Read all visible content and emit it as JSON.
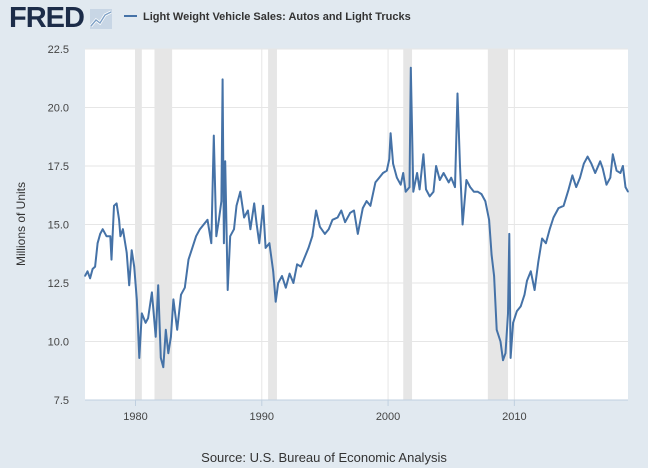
{
  "header": {
    "logo_text": "FRED",
    "legend_label": "Light Weight Vehicle Sales: Autos and Light Trucks"
  },
  "source": "Source: U.S. Bureau of Economic Analysis",
  "colors": {
    "line": "#4572a7",
    "recession": "#e6e6e6",
    "plot_bg": "#ffffff",
    "page_bg": "#e1e9f0"
  },
  "chart_data": {
    "type": "line",
    "title": "Light Weight Vehicle Sales: Autos and Light Trucks",
    "xlabel": "",
    "ylabel": "Millions of Units",
    "xlim": [
      1976,
      2019
    ],
    "ylim": [
      7.5,
      22.5
    ],
    "yticks": [
      "7.5",
      "10.0",
      "12.5",
      "15.0",
      "17.5",
      "20.0",
      "22.5"
    ],
    "xticks": [
      "1980",
      "1990",
      "2000",
      "2010"
    ],
    "grid": true,
    "recessions": [
      [
        1980.0,
        1980.5
      ],
      [
        1981.5,
        1982.9
      ],
      [
        1990.5,
        1991.2
      ],
      [
        2001.2,
        2001.9
      ],
      [
        2007.9,
        2009.5
      ]
    ],
    "series": [
      {
        "name": "Light Weight Vehicle Sales: Autos and Light Trucks",
        "points": [
          [
            1976.0,
            12.8
          ],
          [
            1976.2,
            13.0
          ],
          [
            1976.4,
            12.7
          ],
          [
            1976.6,
            13.1
          ],
          [
            1976.8,
            13.2
          ],
          [
            1977.0,
            14.2
          ],
          [
            1977.2,
            14.6
          ],
          [
            1977.4,
            14.8
          ],
          [
            1977.7,
            14.5
          ],
          [
            1978.0,
            14.5
          ],
          [
            1978.1,
            13.5
          ],
          [
            1978.3,
            15.8
          ],
          [
            1978.5,
            15.9
          ],
          [
            1978.7,
            15.2
          ],
          [
            1978.8,
            14.5
          ],
          [
            1979.0,
            14.8
          ],
          [
            1979.3,
            13.8
          ],
          [
            1979.5,
            12.4
          ],
          [
            1979.7,
            13.9
          ],
          [
            1979.9,
            13.2
          ],
          [
            1980.1,
            11.8
          ],
          [
            1980.3,
            9.3
          ],
          [
            1980.5,
            11.2
          ],
          [
            1980.8,
            10.8
          ],
          [
            1981.0,
            11.0
          ],
          [
            1981.3,
            12.1
          ],
          [
            1981.6,
            10.2
          ],
          [
            1981.8,
            12.4
          ],
          [
            1982.0,
            9.3
          ],
          [
            1982.2,
            8.9
          ],
          [
            1982.4,
            10.5
          ],
          [
            1982.6,
            9.5
          ],
          [
            1982.8,
            10.2
          ],
          [
            1983.0,
            11.8
          ],
          [
            1983.3,
            10.5
          ],
          [
            1983.6,
            12.0
          ],
          [
            1983.9,
            12.3
          ],
          [
            1984.2,
            13.5
          ],
          [
            1984.5,
            14.0
          ],
          [
            1984.8,
            14.5
          ],
          [
            1985.1,
            14.8
          ],
          [
            1985.4,
            15.0
          ],
          [
            1985.7,
            15.2
          ],
          [
            1986.0,
            14.2
          ],
          [
            1986.2,
            18.8
          ],
          [
            1986.4,
            14.5
          ],
          [
            1986.6,
            15.2
          ],
          [
            1986.8,
            16.0
          ],
          [
            1986.9,
            21.2
          ],
          [
            1987.0,
            14.2
          ],
          [
            1987.1,
            17.7
          ],
          [
            1987.3,
            12.2
          ],
          [
            1987.5,
            14.5
          ],
          [
            1987.8,
            14.8
          ],
          [
            1988.0,
            15.8
          ],
          [
            1988.3,
            16.4
          ],
          [
            1988.6,
            15.3
          ],
          [
            1988.9,
            15.6
          ],
          [
            1989.1,
            14.8
          ],
          [
            1989.4,
            15.9
          ],
          [
            1989.6,
            15.0
          ],
          [
            1989.8,
            14.2
          ],
          [
            1990.1,
            15.8
          ],
          [
            1990.3,
            14.0
          ],
          [
            1990.6,
            14.2
          ],
          [
            1990.9,
            13.0
          ],
          [
            1991.1,
            11.7
          ],
          [
            1991.3,
            12.5
          ],
          [
            1991.6,
            12.8
          ],
          [
            1991.9,
            12.3
          ],
          [
            1992.2,
            12.9
          ],
          [
            1992.5,
            12.5
          ],
          [
            1992.8,
            13.3
          ],
          [
            1993.1,
            13.2
          ],
          [
            1993.4,
            13.6
          ],
          [
            1993.7,
            14.0
          ],
          [
            1994.0,
            14.5
          ],
          [
            1994.3,
            15.6
          ],
          [
            1994.6,
            14.9
          ],
          [
            1995.0,
            14.6
          ],
          [
            1995.3,
            14.8
          ],
          [
            1995.6,
            15.2
          ],
          [
            1996.0,
            15.3
          ],
          [
            1996.3,
            15.6
          ],
          [
            1996.6,
            15.1
          ],
          [
            1997.0,
            15.5
          ],
          [
            1997.3,
            15.6
          ],
          [
            1997.6,
            14.6
          ],
          [
            1998.0,
            15.7
          ],
          [
            1998.3,
            16.0
          ],
          [
            1998.6,
            15.8
          ],
          [
            1999.0,
            16.8
          ],
          [
            1999.3,
            17.0
          ],
          [
            1999.6,
            17.2
          ],
          [
            1999.9,
            17.3
          ],
          [
            2000.1,
            17.8
          ],
          [
            2000.2,
            18.9
          ],
          [
            2000.4,
            17.6
          ],
          [
            2000.7,
            17.0
          ],
          [
            2001.0,
            16.7
          ],
          [
            2001.2,
            17.2
          ],
          [
            2001.4,
            16.4
          ],
          [
            2001.7,
            16.6
          ],
          [
            2001.8,
            21.7
          ],
          [
            2002.0,
            16.4
          ],
          [
            2002.3,
            17.2
          ],
          [
            2002.5,
            16.5
          ],
          [
            2002.8,
            18.0
          ],
          [
            2003.0,
            16.5
          ],
          [
            2003.3,
            16.2
          ],
          [
            2003.6,
            16.4
          ],
          [
            2003.8,
            17.5
          ],
          [
            2004.1,
            16.9
          ],
          [
            2004.4,
            17.2
          ],
          [
            2004.8,
            16.8
          ],
          [
            2005.0,
            17.0
          ],
          [
            2005.3,
            16.6
          ],
          [
            2005.5,
            20.6
          ],
          [
            2005.7,
            17.5
          ],
          [
            2005.9,
            15.0
          ],
          [
            2006.2,
            16.9
          ],
          [
            2006.5,
            16.6
          ],
          [
            2006.8,
            16.4
          ],
          [
            2007.1,
            16.4
          ],
          [
            2007.4,
            16.3
          ],
          [
            2007.7,
            16.0
          ],
          [
            2008.0,
            15.2
          ],
          [
            2008.2,
            13.7
          ],
          [
            2008.4,
            12.8
          ],
          [
            2008.6,
            10.5
          ],
          [
            2008.9,
            10.0
          ],
          [
            2009.1,
            9.2
          ],
          [
            2009.3,
            9.5
          ],
          [
            2009.5,
            11.2
          ],
          [
            2009.6,
            14.6
          ],
          [
            2009.7,
            9.3
          ],
          [
            2009.9,
            10.8
          ],
          [
            2010.2,
            11.3
          ],
          [
            2010.5,
            11.5
          ],
          [
            2010.8,
            12.0
          ],
          [
            2011.0,
            12.6
          ],
          [
            2011.3,
            13.0
          ],
          [
            2011.6,
            12.2
          ],
          [
            2011.9,
            13.4
          ],
          [
            2012.2,
            14.4
          ],
          [
            2012.5,
            14.2
          ],
          [
            2012.8,
            14.8
          ],
          [
            2013.1,
            15.3
          ],
          [
            2013.5,
            15.7
          ],
          [
            2013.9,
            15.8
          ],
          [
            2014.3,
            16.5
          ],
          [
            2014.6,
            17.1
          ],
          [
            2014.9,
            16.6
          ],
          [
            2015.2,
            17.0
          ],
          [
            2015.5,
            17.6
          ],
          [
            2015.8,
            17.9
          ],
          [
            2016.1,
            17.6
          ],
          [
            2016.4,
            17.2
          ],
          [
            2016.8,
            17.7
          ],
          [
            2017.0,
            17.4
          ],
          [
            2017.3,
            16.7
          ],
          [
            2017.6,
            17.0
          ],
          [
            2017.8,
            18.0
          ],
          [
            2018.1,
            17.3
          ],
          [
            2018.4,
            17.2
          ],
          [
            2018.6,
            17.5
          ],
          [
            2018.8,
            16.6
          ],
          [
            2019.0,
            16.4
          ]
        ]
      }
    ]
  }
}
